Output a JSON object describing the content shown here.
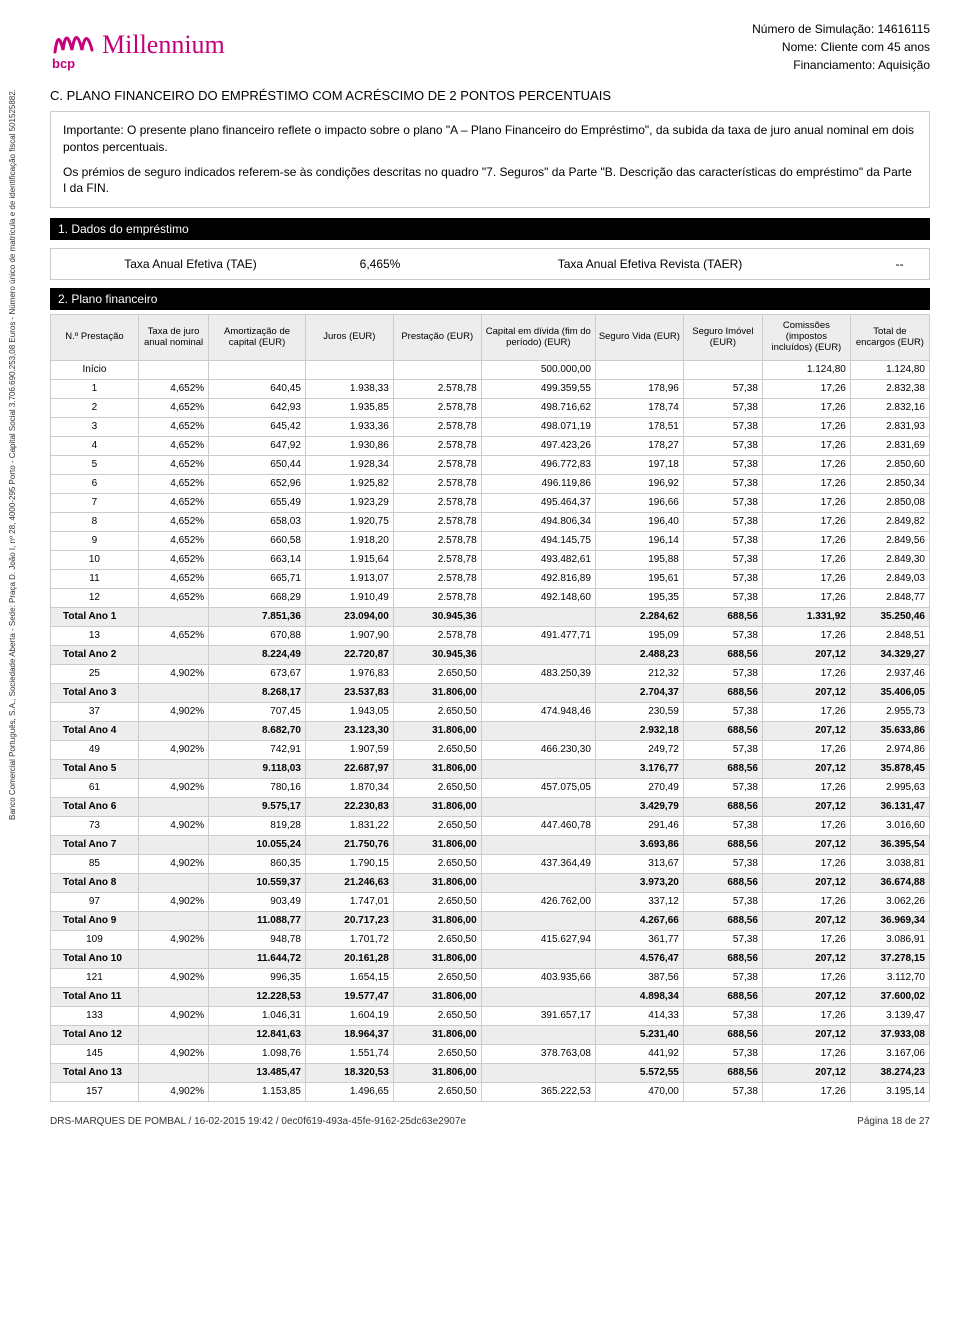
{
  "header": {
    "sim_number_label": "Número de Simulação: 14616115",
    "name_label": "Nome: Cliente com 45 anos",
    "financing_label": "Financiamento: Aquisição"
  },
  "logo": {
    "text": "Millennium",
    "sub": "bcp"
  },
  "section_title": "C. PLANO FINANCEIRO DO EMPRÉSTIMO COM ACRÉSCIMO DE 2 PONTOS PERCENTUAIS",
  "notice": {
    "p1": "Importante: O presente plano financeiro reflete o impacto sobre o plano \"A – Plano Financeiro do Empréstimo\", da subida da taxa de juro anual nominal em dois pontos percentuais.",
    "p2": "Os prémios de seguro indicados referem-se às condições descritas no quadro \"7. Seguros\" da Parte \"B. Descrição das características do empréstimo\" da Parte I da FIN."
  },
  "section1_title": "1. Dados do empréstimo",
  "rates": {
    "tae_label": "Taxa Anual Efetiva (TAE)",
    "tae_value": "6,465%",
    "taer_label": "Taxa Anual Efetiva Revista (TAER)",
    "taer_value": "--"
  },
  "section2_title": "2. Plano financeiro",
  "columns": [
    "N.º Prestação",
    "Taxa de juro anual nominal",
    "Amortização de capital (EUR)",
    "Juros (EUR)",
    "Prestação (EUR)",
    "Capital em dívida (fim do período) (EUR)",
    "Seguro Vida (EUR)",
    "Seguro Imóvel (EUR)",
    "Comissões (impostos incluídos) (EUR)",
    "Total de encargos (EUR)"
  ],
  "rows": [
    {
      "t": false,
      "c": [
        "Início",
        "",
        "",
        "",
        "",
        "500.000,00",
        "",
        "",
        "1.124,80",
        "1.124,80"
      ]
    },
    {
      "t": false,
      "c": [
        "1",
        "4,652%",
        "640,45",
        "1.938,33",
        "2.578,78",
        "499.359,55",
        "178,96",
        "57,38",
        "17,26",
        "2.832,38"
      ]
    },
    {
      "t": false,
      "c": [
        "2",
        "4,652%",
        "642,93",
        "1.935,85",
        "2.578,78",
        "498.716,62",
        "178,74",
        "57,38",
        "17,26",
        "2.832,16"
      ]
    },
    {
      "t": false,
      "c": [
        "3",
        "4,652%",
        "645,42",
        "1.933,36",
        "2.578,78",
        "498.071,19",
        "178,51",
        "57,38",
        "17,26",
        "2.831,93"
      ]
    },
    {
      "t": false,
      "c": [
        "4",
        "4,652%",
        "647,92",
        "1.930,86",
        "2.578,78",
        "497.423,26",
        "178,27",
        "57,38",
        "17,26",
        "2.831,69"
      ]
    },
    {
      "t": false,
      "c": [
        "5",
        "4,652%",
        "650,44",
        "1.928,34",
        "2.578,78",
        "496.772,83",
        "197,18",
        "57,38",
        "17,26",
        "2.850,60"
      ]
    },
    {
      "t": false,
      "c": [
        "6",
        "4,652%",
        "652,96",
        "1.925,82",
        "2.578,78",
        "496.119,86",
        "196,92",
        "57,38",
        "17,26",
        "2.850,34"
      ]
    },
    {
      "t": false,
      "c": [
        "7",
        "4,652%",
        "655,49",
        "1.923,29",
        "2.578,78",
        "495.464,37",
        "196,66",
        "57,38",
        "17,26",
        "2.850,08"
      ]
    },
    {
      "t": false,
      "c": [
        "8",
        "4,652%",
        "658,03",
        "1.920,75",
        "2.578,78",
        "494.806,34",
        "196,40",
        "57,38",
        "17,26",
        "2.849,82"
      ]
    },
    {
      "t": false,
      "c": [
        "9",
        "4,652%",
        "660,58",
        "1.918,20",
        "2.578,78",
        "494.145,75",
        "196,14",
        "57,38",
        "17,26",
        "2.849,56"
      ]
    },
    {
      "t": false,
      "c": [
        "10",
        "4,652%",
        "663,14",
        "1.915,64",
        "2.578,78",
        "493.482,61",
        "195,88",
        "57,38",
        "17,26",
        "2.849,30"
      ]
    },
    {
      "t": false,
      "c": [
        "11",
        "4,652%",
        "665,71",
        "1.913,07",
        "2.578,78",
        "492.816,89",
        "195,61",
        "57,38",
        "17,26",
        "2.849,03"
      ]
    },
    {
      "t": false,
      "c": [
        "12",
        "4,652%",
        "668,29",
        "1.910,49",
        "2.578,78",
        "492.148,60",
        "195,35",
        "57,38",
        "17,26",
        "2.848,77"
      ]
    },
    {
      "t": true,
      "c": [
        "Total Ano 1",
        "",
        "7.851,36",
        "23.094,00",
        "30.945,36",
        "",
        "2.284,62",
        "688,56",
        "1.331,92",
        "35.250,46"
      ]
    },
    {
      "t": false,
      "c": [
        "13",
        "4,652%",
        "670,88",
        "1.907,90",
        "2.578,78",
        "491.477,71",
        "195,09",
        "57,38",
        "17,26",
        "2.848,51"
      ]
    },
    {
      "t": true,
      "c": [
        "Total Ano 2",
        "",
        "8.224,49",
        "22.720,87",
        "30.945,36",
        "",
        "2.488,23",
        "688,56",
        "207,12",
        "34.329,27"
      ]
    },
    {
      "t": false,
      "c": [
        "25",
        "4,902%",
        "673,67",
        "1.976,83",
        "2.650,50",
        "483.250,39",
        "212,32",
        "57,38",
        "17,26",
        "2.937,46"
      ]
    },
    {
      "t": true,
      "c": [
        "Total Ano 3",
        "",
        "8.268,17",
        "23.537,83",
        "31.806,00",
        "",
        "2.704,37",
        "688,56",
        "207,12",
        "35.406,05"
      ]
    },
    {
      "t": false,
      "c": [
        "37",
        "4,902%",
        "707,45",
        "1.943,05",
        "2.650,50",
        "474.948,46",
        "230,59",
        "57,38",
        "17,26",
        "2.955,73"
      ]
    },
    {
      "t": true,
      "c": [
        "Total Ano 4",
        "",
        "8.682,70",
        "23.123,30",
        "31.806,00",
        "",
        "2.932,18",
        "688,56",
        "207,12",
        "35.633,86"
      ]
    },
    {
      "t": false,
      "c": [
        "49",
        "4,902%",
        "742,91",
        "1.907,59",
        "2.650,50",
        "466.230,30",
        "249,72",
        "57,38",
        "17,26",
        "2.974,86"
      ]
    },
    {
      "t": true,
      "c": [
        "Total Ano 5",
        "",
        "9.118,03",
        "22.687,97",
        "31.806,00",
        "",
        "3.176,77",
        "688,56",
        "207,12",
        "35.878,45"
      ]
    },
    {
      "t": false,
      "c": [
        "61",
        "4,902%",
        "780,16",
        "1.870,34",
        "2.650,50",
        "457.075,05",
        "270,49",
        "57,38",
        "17,26",
        "2.995,63"
      ]
    },
    {
      "t": true,
      "c": [
        "Total Ano 6",
        "",
        "9.575,17",
        "22.230,83",
        "31.806,00",
        "",
        "3.429,79",
        "688,56",
        "207,12",
        "36.131,47"
      ]
    },
    {
      "t": false,
      "c": [
        "73",
        "4,902%",
        "819,28",
        "1.831,22",
        "2.650,50",
        "447.460,78",
        "291,46",
        "57,38",
        "17,26",
        "3.016,60"
      ]
    },
    {
      "t": true,
      "c": [
        "Total Ano 7",
        "",
        "10.055,24",
        "21.750,76",
        "31.806,00",
        "",
        "3.693,86",
        "688,56",
        "207,12",
        "36.395,54"
      ]
    },
    {
      "t": false,
      "c": [
        "85",
        "4,902%",
        "860,35",
        "1.790,15",
        "2.650,50",
        "437.364,49",
        "313,67",
        "57,38",
        "17,26",
        "3.038,81"
      ]
    },
    {
      "t": true,
      "c": [
        "Total Ano 8",
        "",
        "10.559,37",
        "21.246,63",
        "31.806,00",
        "",
        "3.973,20",
        "688,56",
        "207,12",
        "36.674,88"
      ]
    },
    {
      "t": false,
      "c": [
        "97",
        "4,902%",
        "903,49",
        "1.747,01",
        "2.650,50",
        "426.762,00",
        "337,12",
        "57,38",
        "17,26",
        "3.062,26"
      ]
    },
    {
      "t": true,
      "c": [
        "Total Ano 9",
        "",
        "11.088,77",
        "20.717,23",
        "31.806,00",
        "",
        "4.267,66",
        "688,56",
        "207,12",
        "36.969,34"
      ]
    },
    {
      "t": false,
      "c": [
        "109",
        "4,902%",
        "948,78",
        "1.701,72",
        "2.650,50",
        "415.627,94",
        "361,77",
        "57,38",
        "17,26",
        "3.086,91"
      ]
    },
    {
      "t": true,
      "c": [
        "Total Ano 10",
        "",
        "11.644,72",
        "20.161,28",
        "31.806,00",
        "",
        "4.576,47",
        "688,56",
        "207,12",
        "37.278,15"
      ]
    },
    {
      "t": false,
      "c": [
        "121",
        "4,902%",
        "996,35",
        "1.654,15",
        "2.650,50",
        "403.935,66",
        "387,56",
        "57,38",
        "17,26",
        "3.112,70"
      ]
    },
    {
      "t": true,
      "c": [
        "Total Ano 11",
        "",
        "12.228,53",
        "19.577,47",
        "31.806,00",
        "",
        "4.898,34",
        "688,56",
        "207,12",
        "37.600,02"
      ]
    },
    {
      "t": false,
      "c": [
        "133",
        "4,902%",
        "1.046,31",
        "1.604,19",
        "2.650,50",
        "391.657,17",
        "414,33",
        "57,38",
        "17,26",
        "3.139,47"
      ]
    },
    {
      "t": true,
      "c": [
        "Total Ano 12",
        "",
        "12.841,63",
        "18.964,37",
        "31.806,00",
        "",
        "5.231,40",
        "688,56",
        "207,12",
        "37.933,08"
      ]
    },
    {
      "t": false,
      "c": [
        "145",
        "4,902%",
        "1.098,76",
        "1.551,74",
        "2.650,50",
        "378.763,08",
        "441,92",
        "57,38",
        "17,26",
        "3.167,06"
      ]
    },
    {
      "t": true,
      "c": [
        "Total Ano 13",
        "",
        "13.485,47",
        "18.320,53",
        "31.806,00",
        "",
        "5.572,55",
        "688,56",
        "207,12",
        "38.274,23"
      ]
    },
    {
      "t": false,
      "c": [
        "157",
        "4,902%",
        "1.153,85",
        "1.496,65",
        "2.650,50",
        "365.222,53",
        "470,00",
        "57,38",
        "17,26",
        "3.195,14"
      ]
    }
  ],
  "side_text": "Banco Comercial Português, S.A., Sociedade Aberta - Sede: Praça D. João I, nº 28, 4000-295 Porto - Capital Social 3.706.690.253,08 Euros - Número único de matrícula e de identificação fiscal 501525882.",
  "footer": {
    "left": "DRS-MARQUES DE POMBAL / 16-02-2015 19:42 / 0ec0f619-493a-45fe-9162-25dc63e2907e",
    "right": "Página 18 de 27"
  },
  "colwidths": [
    "10%",
    "8%",
    "11%",
    "10%",
    "10%",
    "13%",
    "10%",
    "9%",
    "10%",
    "9%"
  ]
}
